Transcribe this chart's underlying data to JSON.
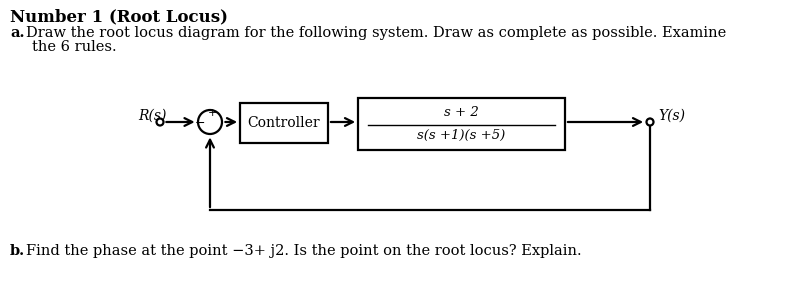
{
  "title": "Number 1 (Root Locus)",
  "part_a_label": "a.",
  "part_a_text1": "Draw the root locus diagram for the following system. Draw as complete as possible. Examine",
  "part_a_text2": "the 6 rules.",
  "part_b_label": "b.",
  "part_b_text": "Find the phase at the point −3+ j2. Is the point on the root locus? Explain.",
  "Rs_label": "R(s)",
  "Ys_label": "Y(s)",
  "controller_label": "Controller",
  "tf_numerator": "s + 2",
  "tf_denominator": "s(s +1)(s +5)",
  "plus_sign": "+",
  "minus_sign": "−",
  "bg_color": "#ffffff",
  "line_color": "#000000",
  "text_color": "#000000",
  "font_size_title": 12,
  "font_size_body": 10.5,
  "font_size_label": 10,
  "font_size_tf": 9.5
}
